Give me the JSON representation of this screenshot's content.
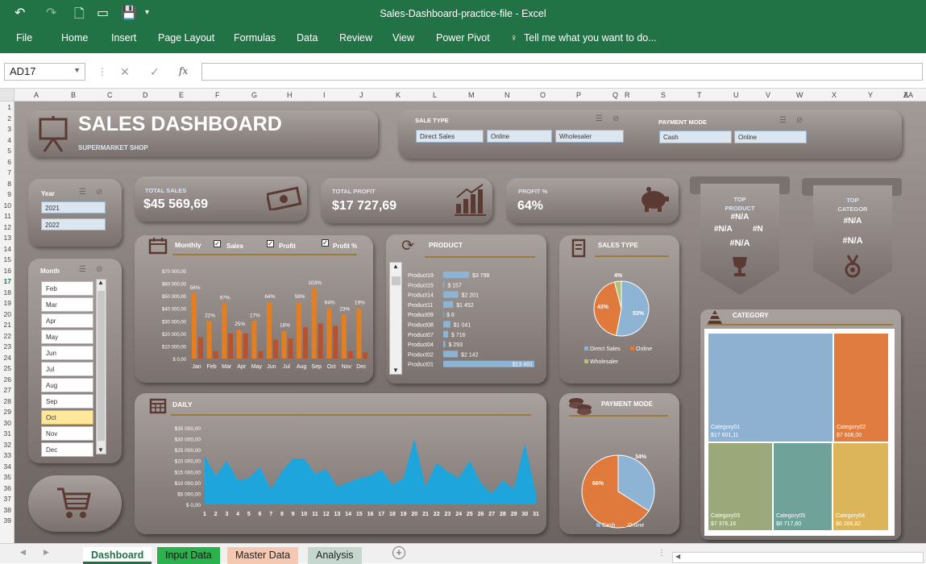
{
  "window_title": "Sales-Dashboard-practice-file - Excel",
  "ribbon_tabs": [
    "File",
    "Home",
    "Insert",
    "Page Layout",
    "Formulas",
    "Data",
    "Review",
    "View",
    "Power Pivot"
  ],
  "tell_me": "Tell me what you want to do...",
  "name_box": "AD17",
  "columns": [
    "A",
    "B",
    "C",
    "D",
    "E",
    "F",
    "G",
    "H",
    "I",
    "J",
    "K",
    "L",
    "M",
    "N",
    "O",
    "P",
    "Q",
    "R",
    "S",
    "T",
    "U",
    "V",
    "W",
    "X",
    "Y",
    "Z",
    "AA"
  ],
  "rows": [
    "1",
    "2",
    "3",
    "4",
    "5",
    "6",
    "7",
    "8",
    "9",
    "10",
    "11",
    "12",
    "13",
    "14",
    "15",
    "16",
    "17",
    "18",
    "19",
    "20",
    "21",
    "22",
    "23",
    "24",
    "25",
    "26",
    "27",
    "28",
    "29",
    "30",
    "31",
    "32",
    "33",
    "34",
    "35",
    "36",
    "37",
    "38",
    "39"
  ],
  "header": {
    "title": "SALES DASHBOARD",
    "subtitle": "SUPERMARKET SHOP"
  },
  "sale_type": {
    "label": "SALE TYPE",
    "items": [
      "Direct Sales",
      "Online",
      "Wholesaler"
    ]
  },
  "payment_mode": {
    "label": "PAYMENT MODE",
    "items": [
      "Cash",
      "Online"
    ]
  },
  "year_slicer": {
    "label": "Year",
    "items": [
      "2021",
      "2022"
    ]
  },
  "month_slicer": {
    "label": "Month",
    "items": [
      "Feb",
      "Mar",
      "Apr",
      "May",
      "Jun",
      "Jul",
      "Aug",
      "Sep",
      "Oct",
      "Nov",
      "Dec"
    ],
    "selected": "Oct"
  },
  "kpis": {
    "sales": {
      "label": "TOTAL SALES",
      "value": "$45 569,69"
    },
    "profit": {
      "label": "TOTAL PROFIT",
      "value": "$17 727,69"
    },
    "profit_pct": {
      "label": "PROFIT %",
      "value": "64%"
    }
  },
  "top_product": {
    "label1": "TOP",
    "label2": "PRODUCT",
    "values": [
      "#N/A",
      "#N/A",
      "#N",
      "#N/A"
    ]
  },
  "top_category": {
    "label1": "TOP",
    "label2": "CATEGOR",
    "values": [
      "#N/A",
      "#N/A"
    ]
  },
  "monthly": {
    "title": "Monthly",
    "checks": [
      "Sales",
      "Profit",
      "Profit %"
    ]
  },
  "product_title": "PRODUCT",
  "sales_type_title": "SALES TYPE",
  "daily_title": "DAILY",
  "payment_title": "PAYMENT MODE",
  "category_title": "CATEGORY",
  "sheet_tabs": [
    "Dashboard",
    "Input Data",
    "Master Data",
    "Analysis"
  ],
  "chart_data": [
    {
      "type": "bar",
      "name": "monthly",
      "categories": [
        "Jan",
        "Feb",
        "Mar",
        "Apr",
        "May",
        "Jun",
        "Jul",
        "Aug",
        "Sep",
        "Oct",
        "Nov",
        "Dec"
      ],
      "series": [
        {
          "name": "Sales",
          "values": [
            52000,
            30000,
            44000,
            23000,
            30000,
            45000,
            22000,
            45000,
            56000,
            40000,
            35000,
            40000
          ]
        },
        {
          "name": "Profit",
          "values": [
            17000,
            6000,
            20000,
            20000,
            6000,
            15000,
            16000,
            25000,
            28000,
            26000,
            6000,
            5000
          ]
        }
      ],
      "labels": [
        "56%",
        "22%",
        "97%",
        "25%",
        "17%",
        "64%",
        "18%",
        "59%",
        "103%",
        "64%",
        "23%",
        "19%"
      ],
      "yticks": [
        "$ 0,00",
        "$10 000,00",
        "$20 000,00",
        "$30 000,00",
        "$40 000,00",
        "$50 000,00",
        "$60 000,00",
        "$70 000,00"
      ],
      "ylim": [
        0,
        70000
      ]
    },
    {
      "type": "bar",
      "name": "product",
      "categories": [
        "Product19",
        "Product15",
        "Product14",
        "Product11",
        "Product09",
        "Product08",
        "Product07",
        "Product04",
        "Product02",
        "Product01"
      ],
      "values": [
        3798,
        157,
        2201,
        1452,
        8,
        1041,
        716,
        293,
        2142,
        13401
      ],
      "labels": [
        "$3 798",
        "$ 157",
        "$2 201",
        "$1 452",
        "$ 8",
        "$1 041",
        "$ 716",
        "$ 293",
        "$2 142",
        "$13 401"
      ]
    },
    {
      "type": "pie",
      "name": "sales_type",
      "categories": [
        "Direct Sales",
        "Online",
        "Wholesaler"
      ],
      "values": [
        53,
        43,
        4
      ],
      "labels": [
        "53%",
        "43%",
        "4%"
      ],
      "colors": [
        "#8eb4d5",
        "#e07a3c",
        "#b3c07a"
      ]
    },
    {
      "type": "area",
      "name": "daily",
      "x": [
        1,
        2,
        3,
        4,
        5,
        6,
        7,
        8,
        9,
        10,
        11,
        12,
        13,
        14,
        15,
        16,
        17,
        18,
        19,
        20,
        21,
        22,
        23,
        24,
        25,
        26,
        27,
        28,
        29,
        30,
        31
      ],
      "values": [
        22000,
        13000,
        20000,
        11000,
        12000,
        17000,
        7000,
        15000,
        21000,
        21000,
        14000,
        16000,
        8000,
        10000,
        12000,
        13000,
        16000,
        9000,
        12000,
        30000,
        8000,
        19000,
        15000,
        12000,
        20000,
        10000,
        5000,
        11000,
        7000,
        28000,
        5000
      ],
      "yticks": [
        "$ 0,00",
        "$5 000,00",
        "$10 000,00",
        "$15 000,00",
        "$20 000,00",
        "$25 000,00",
        "$30 000,00",
        "$35 000,00"
      ],
      "ylim": [
        0,
        35000
      ]
    },
    {
      "type": "pie",
      "name": "payment",
      "categories": [
        "Cash",
        "Online"
      ],
      "values": [
        34,
        66
      ],
      "labels": [
        "34%",
        "66%"
      ],
      "colors": [
        "#8eb4d5",
        "#e07a3c"
      ]
    },
    {
      "type": "heatmap",
      "name": "category",
      "items": [
        {
          "name": "Category01",
          "value": "$17 601,11",
          "color": "#8eb1d2"
        },
        {
          "name": "Category02",
          "value": "$7 608,00",
          "color": "#e07c40"
        },
        {
          "name": "Category03",
          "value": "$7 376,16",
          "color": "#9aa87a"
        },
        {
          "name": "Category05",
          "value": "$6 717,60",
          "color": "#6fa399"
        },
        {
          "name": "Category04",
          "value": "$6 266,82",
          "color": "#dcb45a"
        }
      ]
    }
  ]
}
